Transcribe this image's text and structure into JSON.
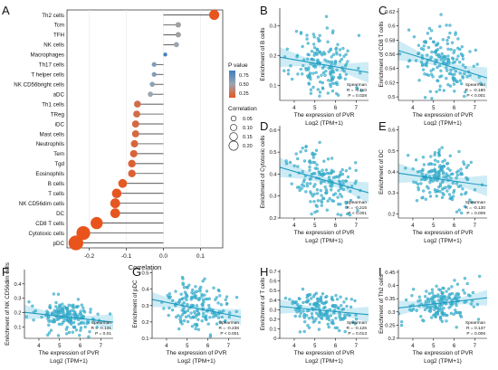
{
  "colors": {
    "point": "#3fb8d6",
    "fit_line": "#1f9ac0",
    "band": "#aee0ee",
    "pvalue_high": "#3d7fc2",
    "pvalue_mid": "#9aa6b0",
    "pvalue_low": "#e8541c"
  },
  "chart_data": [
    {
      "panel": "A",
      "type": "scatter",
      "subtype": "lollipop",
      "xlabel": "Correlation",
      "xlim": [
        -0.26,
        0.16
      ],
      "xticks": [
        -0.2,
        -0.1,
        0.0,
        0.1
      ],
      "xtick_labels": [
        "-0.2",
        "-0.1",
        "0.0",
        "0.1"
      ],
      "categories": [
        "Th2 cells",
        "Tcm",
        "TFH",
        "NK cells",
        "Macrophages",
        "Th17 cells",
        "T helper cells",
        "NK CD56bright cells",
        "aDC",
        "Th1 cells",
        "TReg",
        "iDC",
        "Mast cells",
        "Neutrophils",
        "Tem",
        "Tgd",
        "Eosinophils",
        "B cells",
        "T cells",
        "NK CD56dim cells",
        "DC",
        "CD8 T cells",
        "Cytotoxic cells",
        "pDC"
      ],
      "values": [
        0.137,
        0.04,
        0.04,
        0.035,
        0.005,
        -0.025,
        -0.025,
        -0.03,
        -0.035,
        -0.07,
        -0.072,
        -0.075,
        -0.075,
        -0.078,
        -0.08,
        -0.085,
        -0.085,
        -0.11,
        -0.126,
        -0.13,
        -0.13,
        -0.18,
        -0.216,
        -0.236
      ],
      "p_values": [
        0.006,
        0.45,
        0.45,
        0.5,
        0.9,
        0.6,
        0.6,
        0.55,
        0.5,
        0.16,
        0.15,
        0.13,
        0.13,
        0.11,
        0.1,
        0.08,
        0.08,
        0.028,
        0.013,
        0.01,
        0.009,
        0.001,
        0.001,
        0.001
      ],
      "abs_correlations": [
        0.137,
        0.04,
        0.04,
        0.035,
        0.005,
        0.025,
        0.025,
        0.03,
        0.035,
        0.07,
        0.072,
        0.075,
        0.075,
        0.078,
        0.08,
        0.085,
        0.085,
        0.11,
        0.126,
        0.13,
        0.13,
        0.18,
        0.216,
        0.236
      ],
      "legend_color_title": "P value",
      "legend_color_ticks": [
        "0.75",
        "0.50",
        "0.25"
      ],
      "legend_size_title": "Correlation",
      "legend_size_ticks": [
        "0.05",
        "0.10",
        "0.15",
        "0.20"
      ],
      "legend_size_values": [
        0.05,
        0.1,
        0.15,
        0.2
      ]
    },
    {
      "panel": "B",
      "type": "scatter",
      "ylabel": "Enrichment of B cells",
      "xlabel": "The expression of PVR",
      "xlabel2": "Log2 (TPM+1)",
      "xlim": [
        3.3,
        7.6
      ],
      "ylim": [
        0.05,
        0.36
      ],
      "xticks": [
        4,
        5,
        6,
        7
      ],
      "yticks": [
        0.1,
        0.2,
        0.3
      ],
      "fit": {
        "intercept": 0.235,
        "slope": -0.012
      },
      "y_center": 0.17,
      "y_spread": 0.06,
      "seed": 11,
      "stats": [
        "Spearman",
        "R = -0.110",
        "P = 0.028"
      ]
    },
    {
      "panel": "C",
      "type": "scatter",
      "ylabel": "Enrichment of CD8 T cells",
      "xlabel": "The expression of PVR",
      "xlabel2": "Log2 (TPM+1)",
      "xlim": [
        3.3,
        7.6
      ],
      "ylim": [
        0.495,
        0.625
      ],
      "xticks": [
        4,
        5,
        6,
        7
      ],
      "yticks": [
        0.5,
        0.52,
        0.54,
        0.56,
        0.58,
        0.6,
        0.62
      ],
      "fit": {
        "intercept": 0.595,
        "slope": -0.009
      },
      "y_center": 0.548,
      "y_spread": 0.022,
      "seed": 23,
      "stats": [
        "Spearman",
        "R = -0.180",
        "P < 0.001"
      ]
    },
    {
      "panel": "D",
      "type": "scatter",
      "ylabel": "Enrichment of Cytotoxic cells",
      "xlabel": "The expression of PVR",
      "xlabel2": "Log2 (TPM+1)",
      "xlim": [
        3.3,
        7.6
      ],
      "ylim": [
        0.2,
        0.62
      ],
      "xticks": [
        4,
        5,
        6,
        7
      ],
      "yticks": [
        0.2,
        0.3,
        0.4,
        0.5,
        0.6
      ],
      "fit": {
        "intercept": 0.52,
        "slope": -0.027
      },
      "y_center": 0.37,
      "y_spread": 0.07,
      "seed": 37,
      "stats": [
        "Spearman",
        "R = -0.216",
        "P < 0.001"
      ]
    },
    {
      "panel": "E",
      "type": "scatter",
      "ylabel": "Enrichment of DC",
      "xlabel": "The expression of PVR",
      "xlabel2": "Log2 (TPM+1)",
      "xlim": [
        3.3,
        7.6
      ],
      "ylim": [
        0.18,
        0.62
      ],
      "xticks": [
        4,
        5,
        6,
        7
      ],
      "yticks": [
        0.2,
        0.3,
        0.4,
        0.5,
        0.6
      ],
      "fit": {
        "intercept": 0.44,
        "slope": -0.014
      },
      "y_center": 0.37,
      "y_spread": 0.06,
      "seed": 41,
      "stats": [
        "Spearman",
        "R = -0.130",
        "P = 0.009"
      ]
    },
    {
      "panel": "F",
      "type": "scatter",
      "ylabel": "Enrichment of NK CD56dim cells",
      "xlabel": "The expression of PVR",
      "xlabel2": "Log2 (TPM+1)",
      "xlim": [
        3.3,
        7.6
      ],
      "ylim": [
        0.02,
        0.5
      ],
      "xticks": [
        4,
        5,
        6,
        7
      ],
      "yticks": [
        0.1,
        0.2,
        0.3,
        0.4
      ],
      "fit": {
        "intercept": 0.255,
        "slope": -0.016
      },
      "y_center": 0.17,
      "y_spread": 0.06,
      "seed": 53,
      "stats": [
        "Spearman",
        "R = -0.131",
        "P = 0.01"
      ]
    },
    {
      "panel": "G",
      "type": "scatter",
      "ylabel": "Enrichment of pDC",
      "xlabel": "The expression of PVR",
      "xlabel2": "Log2 (TPM+1)",
      "xlim": [
        3.3,
        7.6
      ],
      "ylim": [
        0.1,
        0.52
      ],
      "xticks": [
        4,
        5,
        6,
        7
      ],
      "yticks": [
        0.1,
        0.2,
        0.3,
        0.4,
        0.5
      ],
      "fit": {
        "intercept": 0.42,
        "slope": -0.025
      },
      "y_center": 0.28,
      "y_spread": 0.07,
      "seed": 67,
      "stats": [
        "Spearman",
        "R = -0.236",
        "P < 0.001"
      ]
    },
    {
      "panel": "H",
      "type": "scatter",
      "ylabel": "Enrichment of T cells",
      "xlabel": "The expression of PVR",
      "xlabel2": "Log2 (TPM+1)",
      "xlim": [
        3.3,
        7.6
      ],
      "ylim": [
        0.0,
        0.72
      ],
      "xticks": [
        4,
        5,
        6,
        7
      ],
      "yticks": [
        0.0,
        0.1,
        0.2,
        0.3,
        0.4,
        0.5,
        0.6,
        0.7
      ],
      "fit": {
        "intercept": 0.4,
        "slope": -0.02
      },
      "y_center": 0.3,
      "y_spread": 0.1,
      "seed": 79,
      "stats": [
        "Spearman",
        "R = -0.126",
        "P = 0.013"
      ]
    },
    {
      "panel": "I",
      "type": "scatter",
      "ylabel": "Enrichment of Th2 cells",
      "xlabel": "The expression of PVR",
      "xlabel2": "Log2 (TPM+1)",
      "xlim": [
        3.3,
        7.6
      ],
      "ylim": [
        0.2,
        0.46
      ],
      "xticks": [
        4,
        5,
        6,
        7
      ],
      "yticks": [
        0.2,
        0.25,
        0.3,
        0.35,
        0.4,
        0.45
      ],
      "fit": {
        "intercept": 0.285,
        "slope": 0.009
      },
      "y_center": 0.33,
      "y_spread": 0.035,
      "seed": 83,
      "stats": [
        "Spearman",
        "R = 0.137",
        "P = 0.006"
      ]
    }
  ]
}
